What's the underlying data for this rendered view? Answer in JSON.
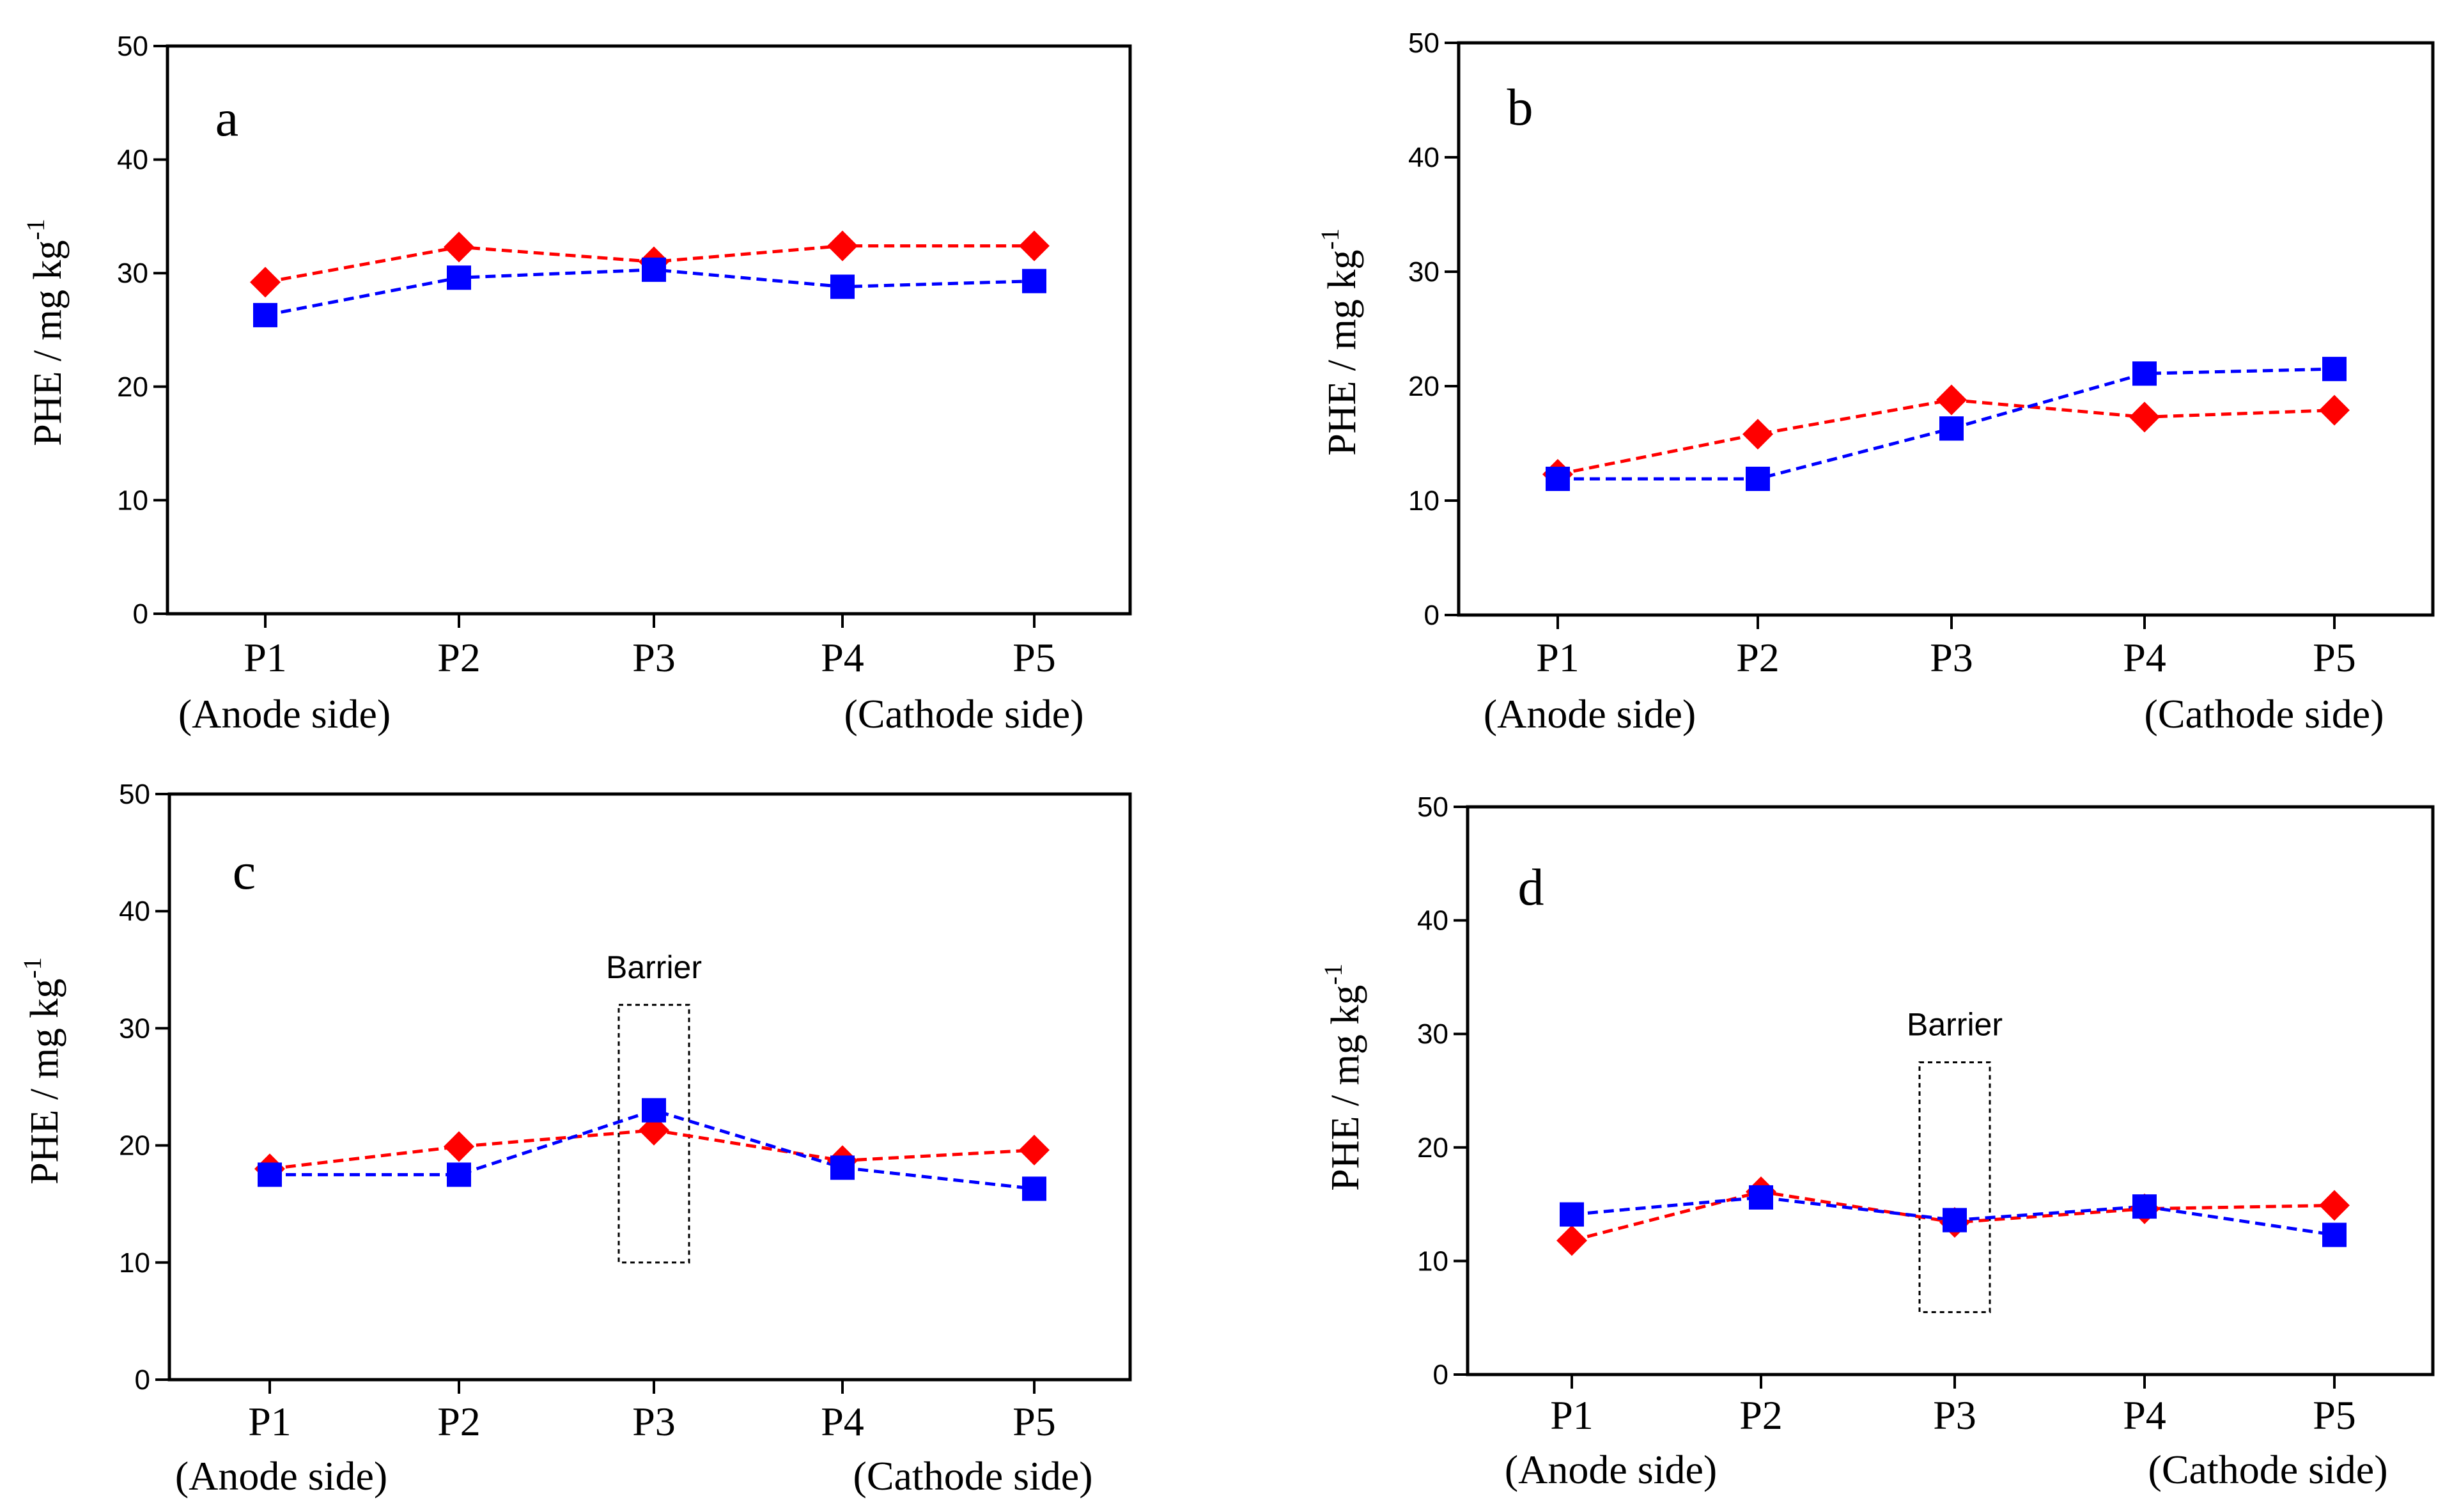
{
  "figure": {
    "ylabel_main": "PHE / mg kg",
    "ylabel_sup": "-1"
  },
  "colors": {
    "series_red": "#ff0000",
    "series_blue": "#0000ff",
    "axis": "#000000"
  },
  "chart_data": [
    {
      "type": "line",
      "panel_label": "a",
      "categories": [
        "P1",
        "P2",
        "P3",
        "P4",
        "P5"
      ],
      "category_sublabels": [
        "(Anode side)",
        "",
        "",
        "",
        "(Cathode side)"
      ],
      "ylim": [
        0,
        50
      ],
      "yticks": [
        0,
        10,
        20,
        30,
        40,
        50
      ],
      "ylabel": "PHE / mg kg-1",
      "series": [
        {
          "name": "red",
          "marker": "diamond",
          "values": [
            29.2,
            32.3,
            31.0,
            32.4,
            32.4
          ]
        },
        {
          "name": "blue",
          "marker": "square",
          "values": [
            26.3,
            29.6,
            30.3,
            28.8,
            29.3
          ]
        }
      ]
    },
    {
      "type": "line",
      "panel_label": "b",
      "categories": [
        "P1",
        "P2",
        "P3",
        "P4",
        "P5"
      ],
      "category_sublabels": [
        "(Anode side)",
        "",
        "",
        "",
        "(Cathode side)"
      ],
      "ylim": [
        0,
        50
      ],
      "yticks": [
        0,
        10,
        20,
        30,
        40,
        50
      ],
      "ylabel": "PHE / mg kg-1",
      "series": [
        {
          "name": "red",
          "marker": "diamond",
          "values": [
            12.3,
            15.8,
            18.8,
            17.3,
            17.9
          ]
        },
        {
          "name": "blue",
          "marker": "square",
          "values": [
            11.9,
            11.9,
            16.3,
            21.1,
            21.5
          ]
        }
      ]
    },
    {
      "type": "line",
      "panel_label": "c",
      "categories": [
        "P1",
        "P2",
        "P3",
        "P4",
        "P5"
      ],
      "category_sublabels": [
        "(Anode side)",
        "",
        "",
        "",
        "(Cathode side)"
      ],
      "ylim": [
        0,
        50
      ],
      "yticks": [
        0,
        10,
        20,
        30,
        40,
        50
      ],
      "ylabel": "PHE / mg kg-1",
      "annotation": {
        "text": "Barrier",
        "category": "P3",
        "y_range": [
          10,
          32
        ]
      },
      "series": [
        {
          "name": "red",
          "marker": "diamond",
          "values": [
            18.0,
            19.9,
            21.3,
            18.7,
            19.6
          ]
        },
        {
          "name": "blue",
          "marker": "square",
          "values": [
            17.5,
            17.5,
            23.0,
            18.1,
            16.3
          ]
        }
      ]
    },
    {
      "type": "line",
      "panel_label": "d",
      "categories": [
        "P1",
        "P2",
        "P3",
        "P4",
        "P5"
      ],
      "category_sublabels": [
        "(Anode side)",
        "",
        "",
        "",
        "(Cathode side)"
      ],
      "ylim": [
        0,
        50
      ],
      "yticks": [
        0,
        10,
        20,
        30,
        40,
        50
      ],
      "ylabel": "PHE / mg kg-1",
      "annotation": {
        "text": "Barrier",
        "category": "P3",
        "y_range": [
          5.5,
          27.5
        ]
      },
      "series": [
        {
          "name": "red",
          "marker": "diamond",
          "values": [
            11.8,
            16.1,
            13.4,
            14.6,
            14.9
          ]
        },
        {
          "name": "blue",
          "marker": "square",
          "values": [
            14.1,
            15.6,
            13.6,
            14.8,
            12.3
          ]
        }
      ]
    }
  ]
}
